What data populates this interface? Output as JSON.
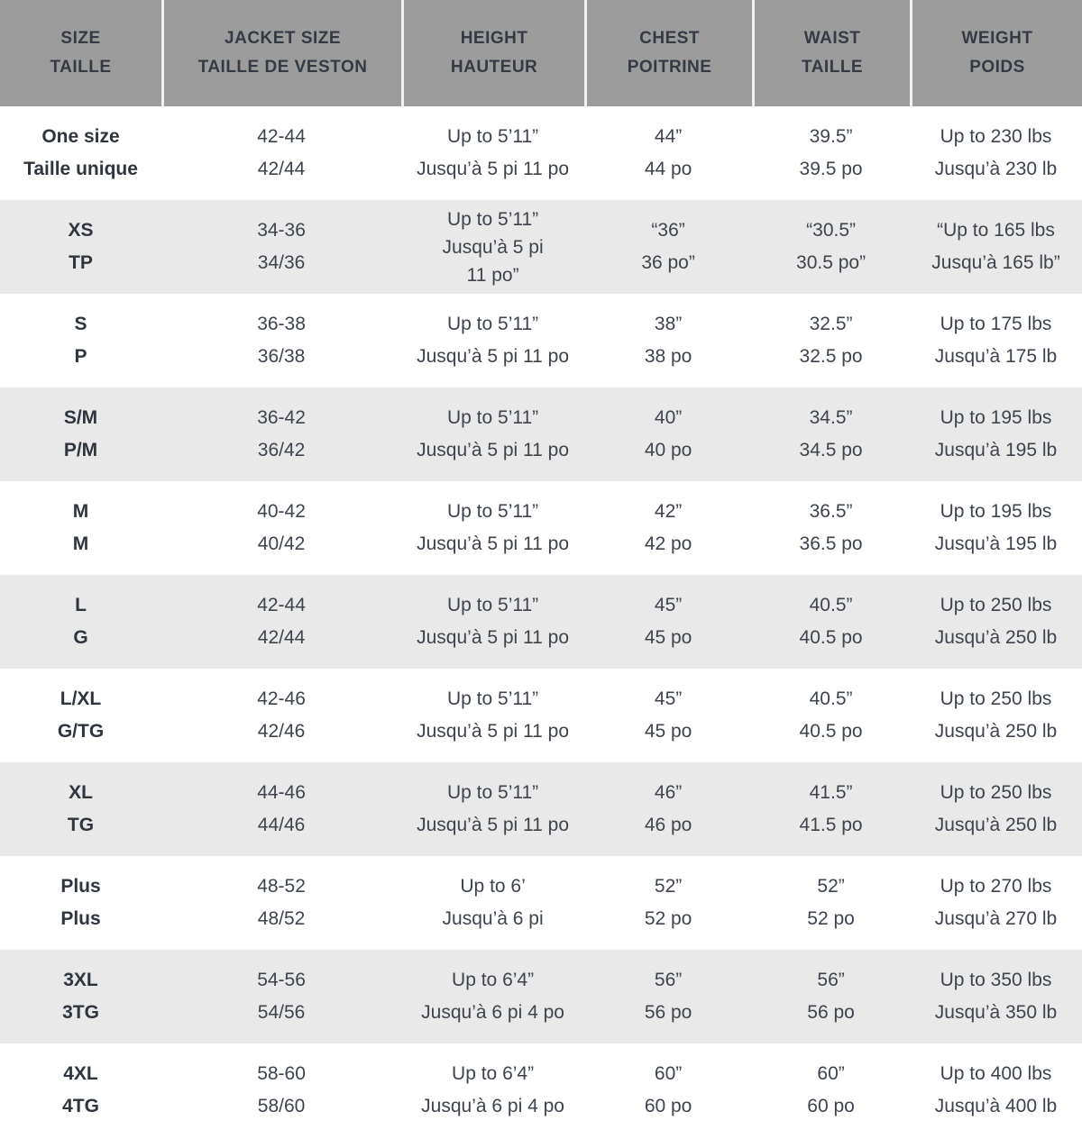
{
  "colors": {
    "header_bg": "#9c9c9c",
    "header_text": "#343a44",
    "header_divider": "#f2f2f2",
    "body_text": "#3e444d",
    "alt_row_bg": "#e9e9e9",
    "row_bg": "#ffffff"
  },
  "table": {
    "column_keys": [
      "size",
      "jacket",
      "height",
      "chest",
      "waist",
      "weight"
    ],
    "headers": [
      {
        "en": "SIZE",
        "fr": "TAILLE"
      },
      {
        "en": "JACKET SIZE",
        "fr": "TAILLE DE VESTON"
      },
      {
        "en": "HEIGHT",
        "fr": "HAUTEUR"
      },
      {
        "en": "CHEST",
        "fr": "POITRINE"
      },
      {
        "en": "WAIST",
        "fr": "TAILLE"
      },
      {
        "en": "WEIGHT",
        "fr": "POIDS"
      }
    ],
    "rows": [
      {
        "size": [
          "One size",
          "Taille unique"
        ],
        "jacket": [
          "42-44",
          "42/44"
        ],
        "height": [
          "Up to 5’11”",
          "Jusqu’à 5 pi 11 po"
        ],
        "chest": [
          "44”",
          "44 po"
        ],
        "waist": [
          "39.5”",
          "39.5 po"
        ],
        "weight": [
          "Up to 230 lbs",
          "Jusqu’à 230 lb"
        ]
      },
      {
        "size": [
          "XS",
          "TP"
        ],
        "jacket": [
          "34-36",
          "34/36"
        ],
        "height": [
          "Up to 5’11”",
          "Jusqu’à 5 pi",
          "11 po”"
        ],
        "chest": [
          "“36”",
          "36 po”"
        ],
        "waist": [
          "“30.5”",
          "30.5 po”"
        ],
        "weight": [
          "“Up to 165 lbs",
          "Jusqu’à 165 lb”"
        ]
      },
      {
        "size": [
          "S",
          "P"
        ],
        "jacket": [
          "36-38",
          "36/38"
        ],
        "height": [
          "Up to 5’11”",
          "Jusqu’à 5 pi 11 po"
        ],
        "chest": [
          "38”",
          "38 po"
        ],
        "waist": [
          "32.5”",
          "32.5 po"
        ],
        "weight": [
          "Up to 175 lbs",
          "Jusqu’à 175 lb"
        ]
      },
      {
        "size": [
          "S/M",
          "P/M"
        ],
        "jacket": [
          "36-42",
          "36/42"
        ],
        "height": [
          "Up to 5’11”",
          "Jusqu’à 5 pi 11 po"
        ],
        "chest": [
          "40”",
          "40 po"
        ],
        "waist": [
          "34.5”",
          "34.5 po"
        ],
        "weight": [
          "Up to 195 lbs",
          "Jusqu’à 195 lb"
        ]
      },
      {
        "size": [
          "M",
          "M"
        ],
        "jacket": [
          "40-42",
          "40/42"
        ],
        "height": [
          "Up to 5’11”",
          "Jusqu’à 5 pi 11 po"
        ],
        "chest": [
          "42”",
          "42 po"
        ],
        "waist": [
          "36.5”",
          "36.5 po"
        ],
        "weight": [
          "Up to 195 lbs",
          "Jusqu’à 195 lb"
        ]
      },
      {
        "size": [
          "L",
          "G"
        ],
        "jacket": [
          "42-44",
          "42/44"
        ],
        "height": [
          "Up to 5’11”",
          "Jusqu’à 5 pi 11 po"
        ],
        "chest": [
          "45”",
          "45 po"
        ],
        "waist": [
          "40.5”",
          "40.5 po"
        ],
        "weight": [
          "Up to 250 lbs",
          "Jusqu’à 250 lb"
        ]
      },
      {
        "size": [
          "L/XL",
          "G/TG"
        ],
        "jacket": [
          "42-46",
          "42/46"
        ],
        "height": [
          "Up to 5’11”",
          "Jusqu’à 5 pi 11 po"
        ],
        "chest": [
          "45”",
          "45 po"
        ],
        "waist": [
          "40.5”",
          "40.5 po"
        ],
        "weight": [
          "Up to 250 lbs",
          "Jusqu’à 250 lb"
        ]
      },
      {
        "size": [
          "XL",
          "TG"
        ],
        "jacket": [
          "44-46",
          "44/46"
        ],
        "height": [
          "Up to 5’11”",
          "Jusqu’à 5 pi 11 po"
        ],
        "chest": [
          "46”",
          "46 po"
        ],
        "waist": [
          "41.5”",
          "41.5 po"
        ],
        "weight": [
          "Up to 250 lbs",
          "Jusqu’à 250 lb"
        ]
      },
      {
        "size": [
          "Plus",
          "Plus"
        ],
        "jacket": [
          "48-52",
          "48/52"
        ],
        "height": [
          "Up to 6’",
          "Jusqu’à 6 pi"
        ],
        "chest": [
          "52”",
          "52 po"
        ],
        "waist": [
          "52”",
          "52 po"
        ],
        "weight": [
          "Up to 270 lbs",
          "Jusqu’à 270 lb"
        ]
      },
      {
        "size": [
          "3XL",
          "3TG"
        ],
        "jacket": [
          "54-56",
          "54/56"
        ],
        "height": [
          "Up to 6’4”",
          "Jusqu’à 6 pi 4 po"
        ],
        "chest": [
          "56”",
          "56 po"
        ],
        "waist": [
          "56”",
          "56 po"
        ],
        "weight": [
          "Up to 350 lbs",
          "Jusqu’à 350 lb"
        ]
      },
      {
        "size": [
          "4XL",
          "4TG"
        ],
        "jacket": [
          "58-60",
          "58/60"
        ],
        "height": [
          "Up to 6’4”",
          "Jusqu’à 6 pi 4 po"
        ],
        "chest": [
          "60”",
          "60 po"
        ],
        "waist": [
          "60”",
          "60 po"
        ],
        "weight": [
          "Up to 400 lbs",
          "Jusqu’à 400 lb"
        ]
      }
    ]
  }
}
